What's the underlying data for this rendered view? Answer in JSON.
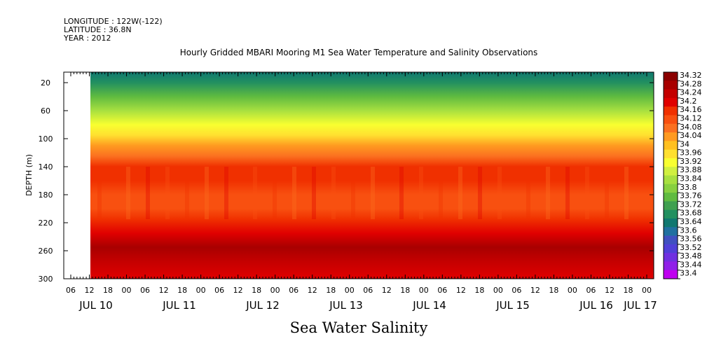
{
  "header": {
    "longitude": "LONGITUDE : 122W(-122)",
    "latitude": "LATITUDE : 36.8N",
    "year": "YEAR : 2012"
  },
  "chart_data": {
    "type": "heatmap",
    "title": "Hourly Gridded MBARI Mooring M1 Sea Water Temperature and Salinity Observations",
    "xlabel": "Sea Water Salinity",
    "ylabel": "DEPTH (m)",
    "y_ticks": [
      20,
      60,
      100,
      140,
      180,
      220,
      260,
      300
    ],
    "ylim": [
      300,
      5
    ],
    "x_hour_ticks": [
      "06",
      "12",
      "18",
      "00",
      "06",
      "12",
      "18",
      "00",
      "06",
      "12",
      "18",
      "00",
      "06",
      "12",
      "18",
      "00",
      "06",
      "12",
      "18",
      "00",
      "06",
      "12",
      "18",
      "00",
      "06",
      "12",
      "18",
      "00",
      "06",
      "12",
      "18",
      "00"
    ],
    "x_day_labels": [
      "JUL 10",
      "JUL 11",
      "JUL 12",
      "JUL 13",
      "JUL 14",
      "JUL 15",
      "JUL 16",
      "JUL 17"
    ],
    "data_start_hour": 12,
    "colorbar_levels": [
      "34.32",
      "34.28",
      "34.24",
      "34.2",
      "34.16",
      "34.12",
      "34.08",
      "34.04",
      "34",
      "33.96",
      "33.92",
      "33.88",
      "33.84",
      "33.8",
      "33.76",
      "33.72",
      "33.68",
      "33.64",
      "33.6",
      "33.56",
      "33.52",
      "33.48",
      "33.44",
      "33.4"
    ],
    "colorbar_colors": [
      "#8b0000",
      "#a80000",
      "#c40000",
      "#e00000",
      "#f03000",
      "#f85010",
      "#fb7020",
      "#ff9a20",
      "#ffc020",
      "#ffe030",
      "#f8ff30",
      "#d0f040",
      "#a8e040",
      "#88d040",
      "#60bb40",
      "#40a050",
      "#229060",
      "#107870",
      "#2070a0",
      "#4050c0",
      "#5040d8",
      "#7030e0",
      "#9020e8",
      "#c000f0"
    ],
    "profile": [
      {
        "depth": 5,
        "value": 33.66
      },
      {
        "depth": 20,
        "value": 33.68
      },
      {
        "depth": 40,
        "value": 33.76
      },
      {
        "depth": 60,
        "value": 33.84
      },
      {
        "depth": 80,
        "value": 33.92
      },
      {
        "depth": 95,
        "value": 33.98
      },
      {
        "depth": 110,
        "value": 34.04
      },
      {
        "depth": 125,
        "value": 34.1
      },
      {
        "depth": 140,
        "value": 34.16
      },
      {
        "depth": 160,
        "value": 34.17
      },
      {
        "depth": 180,
        "value": 34.15
      },
      {
        "depth": 200,
        "value": 34.13
      },
      {
        "depth": 215,
        "value": 34.17
      },
      {
        "depth": 235,
        "value": 34.22
      },
      {
        "depth": 255,
        "value": 34.28
      },
      {
        "depth": 275,
        "value": 34.24
      },
      {
        "depth": 300,
        "value": 34.22
      }
    ],
    "legend_placement": "right colorbar"
  }
}
